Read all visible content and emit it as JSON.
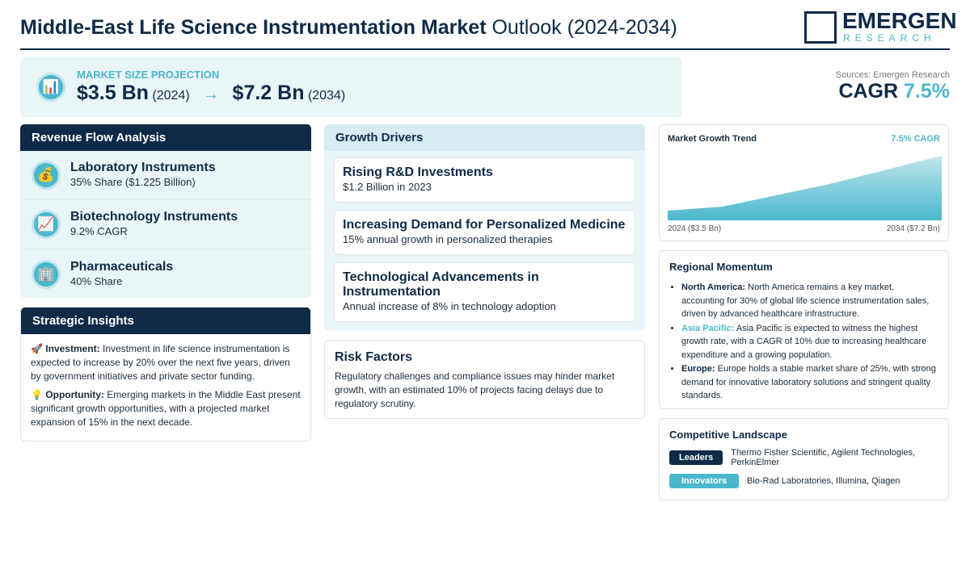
{
  "header": {
    "title_bold": "Middle-East Life Science Instrumentation Market",
    "title_rest": "Outlook (2024-2034)",
    "logo_main": "EMERGEN",
    "logo_sub": "RESEARCH"
  },
  "projection": {
    "label": "MARKET SIZE PROJECTION",
    "start_value": "$3.5 Bn",
    "start_year": "(2024)",
    "end_value": "$7.2 Bn",
    "end_year": "(2034)"
  },
  "summary": {
    "sources": "Sources: Emergen Research",
    "cagr_label": "CAGR",
    "cagr_value": "7.5%"
  },
  "revenue_flow": {
    "title": "Revenue Flow Analysis",
    "items": [
      {
        "name": "Laboratory Instruments",
        "detail": "35% Share ($1.225 Billion)"
      },
      {
        "name": "Biotechnology Instruments",
        "detail": "9.2% CAGR"
      },
      {
        "name": "Pharmaceuticals",
        "detail": "40% Share"
      }
    ]
  },
  "strategic_insights": {
    "title": "Strategic Insights",
    "items": [
      {
        "label": "Investment:",
        "text": "Investment in life science instrumentation is expected to increase by 20% over the next five years, driven by government initiatives and private sector funding."
      },
      {
        "label": "Opportunity:",
        "text": "Emerging markets in the Middle East present significant growth opportunities, with a projected market expansion of 15% in the next decade."
      }
    ]
  },
  "growth_drivers": {
    "title": "Growth Drivers",
    "items": [
      {
        "name": "Rising R&D Investments",
        "detail": "$1.2 Billion in 2023"
      },
      {
        "name": "Increasing Demand for Personalized Medicine",
        "detail": "15% annual growth in personalized therapies"
      },
      {
        "name": "Technological Advancements in Instrumentation",
        "detail": "Annual increase of 8% in technology adoption"
      }
    ]
  },
  "risk_factors": {
    "title": "Risk Factors",
    "text": "Regulatory challenges and compliance issues may hinder market growth, with an estimated 10% of projects facing delays due to regulatory scrutiny."
  },
  "growth_trend": {
    "title": "Market Growth Trend",
    "badge": "7.5% CAGR",
    "start_label": "2024 ($3.5 Bn)",
    "end_label": "2034 ($7.2 Bn)"
  },
  "regional_momentum": {
    "title": "Regional Momentum",
    "items": [
      {
        "region": "North America:",
        "text": "North America remains a key market, accounting for 30% of global life science instrumentation sales, driven by advanced healthcare infrastructure."
      },
      {
        "region": "Asia Pacific:",
        "text": "Asia Pacific is expected to witness the highest growth rate, with a CAGR of 10% due to increasing healthcare expenditure and a growing population."
      },
      {
        "region": "Europe:",
        "text": "Europe holds a stable market share of 25%, with strong demand for innovative laboratory solutions and stringent quality standards."
      }
    ]
  },
  "competitive_landscape": {
    "title": "Competitive Landscape",
    "rows": [
      {
        "tag": "Leaders",
        "companies": "Thermo Fisher Scientific, Agilent Technologies, PerkinElmer"
      },
      {
        "tag": "Innovators",
        "companies": "Bio-Rad Laboratories, Illumina, Qiagen"
      }
    ]
  }
}
